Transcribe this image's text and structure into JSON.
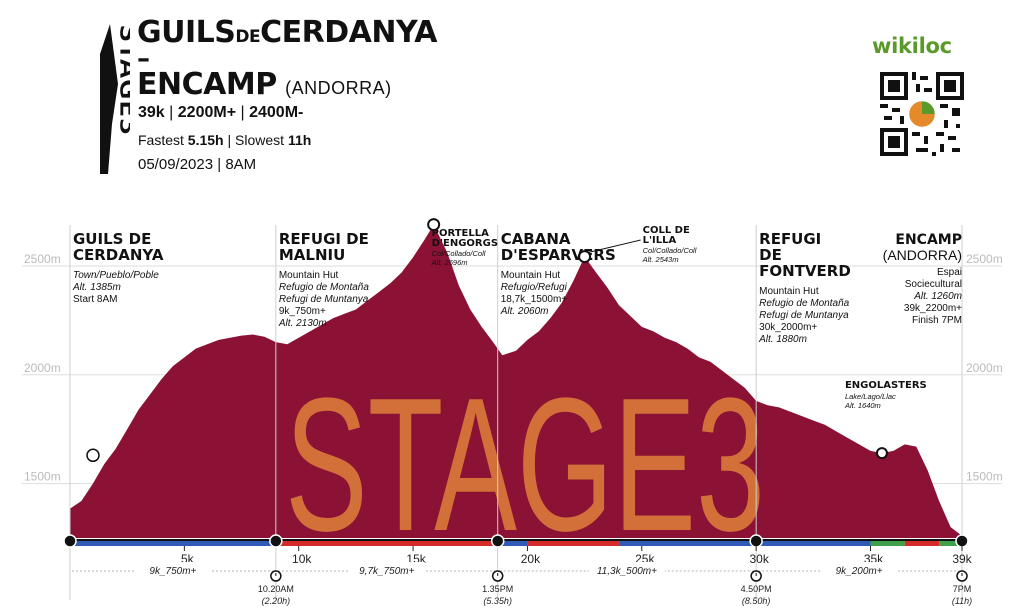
{
  "header": {
    "stage_word": "STAGE3",
    "title_line1_a": "GUILS",
    "title_line1_de": "DE",
    "title_line1_b": "CERDANYA",
    "title_dash": "–",
    "title_line2": "ENCAMP",
    "title_country": "(ANDORRA)",
    "stats_distance": "39k",
    "stats_sep1": "|",
    "stats_gain": "2200M+",
    "stats_sep2": "|",
    "stats_loss": "2400M-",
    "fastest_label": "Fastest",
    "fastest_value": "5.15h",
    "times_sep": "|",
    "slowest_label": "Slowest",
    "slowest_value": "11h",
    "date": "05/09/2023",
    "date_sep": "|",
    "start_time": "8AM"
  },
  "brand": {
    "name": "wikiloc",
    "color": "#5a9a2a",
    "qr_icon": "qr-code-icon"
  },
  "colors": {
    "profile": "#8b1235",
    "watermark": "#d9773a",
    "grid": "#dddddd",
    "axis_label": "#bbbbbb",
    "road_blue": "#2f5bb7",
    "road_red": "#d42a2a",
    "road_green": "#3ea04a"
  },
  "chart_data": {
    "type": "area",
    "watermark": "STAGE3",
    "x_unit": "km",
    "xlim": [
      0,
      39
    ],
    "ylim": [
      1250,
      2780
    ],
    "y_ticks": [
      {
        "value": 1500,
        "label": "1500m"
      },
      {
        "value": 2000,
        "label": "2000m"
      },
      {
        "value": 2500,
        "label": "2500m"
      }
    ],
    "x_ticks": [
      {
        "value": 5,
        "label": "5k"
      },
      {
        "value": 10,
        "label": "10k"
      },
      {
        "value": 15,
        "label": "15k"
      },
      {
        "value": 20,
        "label": "20k"
      },
      {
        "value": 25,
        "label": "25k"
      },
      {
        "value": 30,
        "label": "30k"
      },
      {
        "value": 35,
        "label": "35k"
      },
      {
        "value": 39,
        "label": "39k"
      }
    ],
    "profile": [
      [
        0,
        1385
      ],
      [
        0.5,
        1420
      ],
      [
        1,
        1500
      ],
      [
        1.5,
        1590
      ],
      [
        2,
        1660
      ],
      [
        2.5,
        1750
      ],
      [
        3,
        1840
      ],
      [
        3.5,
        1910
      ],
      [
        4,
        1980
      ],
      [
        4.5,
        2040
      ],
      [
        5,
        2080
      ],
      [
        5.5,
        2120
      ],
      [
        6,
        2140
      ],
      [
        6.5,
        2160
      ],
      [
        7,
        2170
      ],
      [
        7.5,
        2180
      ],
      [
        8,
        2185
      ],
      [
        8.5,
        2175
      ],
      [
        9,
        2150
      ],
      [
        9.5,
        2140
      ],
      [
        10,
        2170
      ],
      [
        10.5,
        2200
      ],
      [
        11,
        2230
      ],
      [
        11.5,
        2260
      ],
      [
        12,
        2280
      ],
      [
        12.5,
        2300
      ],
      [
        13,
        2340
      ],
      [
        13.5,
        2380
      ],
      [
        14,
        2420
      ],
      [
        14.5,
        2470
      ],
      [
        15,
        2540
      ],
      [
        15.5,
        2620
      ],
      [
        15.9,
        2690
      ],
      [
        16.5,
        2560
      ],
      [
        17,
        2410
      ],
      [
        17.5,
        2300
      ],
      [
        18,
        2220
      ],
      [
        18.5,
        2150
      ],
      [
        18.9,
        2090
      ],
      [
        19.5,
        2110
      ],
      [
        20,
        2160
      ],
      [
        20.5,
        2200
      ],
      [
        21,
        2260
      ],
      [
        21.5,
        2330
      ],
      [
        22,
        2430
      ],
      [
        22.5,
        2543
      ],
      [
        23,
        2470
      ],
      [
        23.5,
        2400
      ],
      [
        24,
        2320
      ],
      [
        24.5,
        2270
      ],
      [
        25,
        2220
      ],
      [
        25.5,
        2200
      ],
      [
        26,
        2170
      ],
      [
        26.5,
        2150
      ],
      [
        27,
        2120
      ],
      [
        27.5,
        2080
      ],
      [
        28,
        2060
      ],
      [
        28.5,
        2020
      ],
      [
        29,
        1980
      ],
      [
        29.5,
        1940
      ],
      [
        30,
        1880
      ],
      [
        30.5,
        1860
      ],
      [
        31,
        1850
      ],
      [
        31.5,
        1830
      ],
      [
        32,
        1810
      ],
      [
        32.5,
        1790
      ],
      [
        33,
        1770
      ],
      [
        33.5,
        1740
      ],
      [
        34,
        1710
      ],
      [
        34.5,
        1680
      ],
      [
        35,
        1650
      ],
      [
        35.5,
        1640
      ],
      [
        36,
        1650
      ],
      [
        36.5,
        1680
      ],
      [
        37,
        1670
      ],
      [
        37.5,
        1560
      ],
      [
        38,
        1420
      ],
      [
        38.5,
        1300
      ],
      [
        39,
        1260
      ]
    ],
    "waypoints": [
      {
        "km": 0,
        "name_lines": [
          "GUILS DE",
          "CERDANYA"
        ],
        "sub": [
          "Town/Pueblo/Poble",
          "Alt. 1385m",
          "Start 8AM"
        ],
        "anchor": "left"
      },
      {
        "km": 9,
        "name_lines": [
          "REFUGI DE",
          "MALNIU"
        ],
        "sub": [
          "Mountain Hut",
          "Refugio de Montaña",
          "Refugi de Muntanya",
          "9k_750m+",
          "Alt. 2130m"
        ],
        "anchor": "left"
      },
      {
        "km": 15.9,
        "name_lines": [
          "PORTELLA",
          "D'ENGORGS"
        ],
        "sub": [
          "Col/Collado/Coll",
          "Alt. 2696m"
        ],
        "anchor": "peak"
      },
      {
        "km": 18.7,
        "name_lines": [
          "CABANA",
          "D'ESPARVERS"
        ],
        "sub": [
          "Mountain Hut",
          "Refugio/Refugi",
          "18,7k_1500m+",
          "Alt. 2060m"
        ],
        "anchor": "left"
      },
      {
        "km": 22.5,
        "name_lines": [
          "COLL DE",
          "L'ILLA"
        ],
        "sub": [
          "Col/Collado/Coll",
          "Alt. 2543m"
        ],
        "anchor": "peak"
      },
      {
        "km": 30,
        "name_lines": [
          "REFUGI",
          "DE",
          "FONTVERD"
        ],
        "sub": [
          "Mountain Hut",
          "Refugio de Montaña",
          "Refugi de Muntanya",
          "30k_2000m+",
          "Alt. 1880m"
        ],
        "anchor": "left"
      },
      {
        "km": 35.5,
        "name_lines": [
          "ENGOLASTERS"
        ],
        "sub": [
          "Lake/Lago/Llac",
          "Alt. 1640m"
        ],
        "anchor": "lake"
      },
      {
        "km": 39,
        "name_lines": [
          "ENCAMP",
          "(ANDORRA)"
        ],
        "sub": [
          "Espai",
          "Sociecultural",
          "Alt. 1260m",
          "39k_2200m+",
          "Finish 7PM"
        ],
        "anchor": "right"
      }
    ],
    "segments": [
      {
        "label": "9k_750m+",
        "from": 0,
        "to": 9
      },
      {
        "label": "9,7k_750m+",
        "from": 9,
        "to": 18.7
      },
      {
        "label": "11,3k_500m+",
        "from": 18.7,
        "to": 30
      },
      {
        "label": "9k_200m+",
        "from": 30,
        "to": 39
      }
    ],
    "checkpoints": [
      {
        "km": 9,
        "time": "10.20AM",
        "elapsed": "(2.20h)"
      },
      {
        "km": 18.7,
        "time": "1.35PM",
        "elapsed": "(5.35h)"
      },
      {
        "km": 30,
        "time": "4.50PM",
        "elapsed": "(8.50h)"
      },
      {
        "km": 39,
        "time": "7PM",
        "elapsed": "(11h)"
      }
    ],
    "surface": [
      {
        "from": 0,
        "to": 9,
        "type": "blue"
      },
      {
        "from": 9,
        "to": 18.7,
        "type": "red"
      },
      {
        "from": 18.7,
        "to": 20,
        "type": "blue"
      },
      {
        "from": 20,
        "to": 24,
        "type": "red"
      },
      {
        "from": 24,
        "to": 35,
        "type": "blue"
      },
      {
        "from": 35,
        "to": 36.5,
        "type": "green"
      },
      {
        "from": 36.5,
        "to": 38,
        "type": "red"
      },
      {
        "from": 38,
        "to": 39,
        "type": "green"
      }
    ]
  }
}
